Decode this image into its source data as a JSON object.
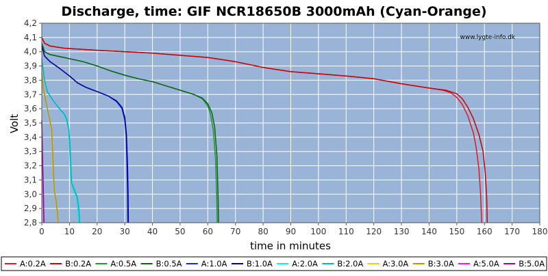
{
  "chart_data": {
    "type": "line",
    "title": "Discharge, time: GIF NCR18650B 3000mAh (Cyan-Orange)",
    "xlabel": "time in minutes",
    "ylabel": "Volt",
    "watermark": "www.lygte-info.dk",
    "xlim": [
      0,
      180
    ],
    "ylim": [
      2.8,
      4.2
    ],
    "xticks": [
      0,
      10,
      20,
      30,
      40,
      50,
      60,
      70,
      80,
      90,
      100,
      110,
      120,
      130,
      140,
      150,
      160,
      170,
      180
    ],
    "yticks": [
      "2,8",
      "2,9",
      "3,0",
      "3,1",
      "3,2",
      "3,3",
      "3,4",
      "3,5",
      "3,6",
      "3,7",
      "3,8",
      "3,9",
      "4,0",
      "4,1",
      "4,2"
    ],
    "grid": true,
    "legend_position": "bottom",
    "colors": {
      "plot_bg": "#9ab4d8",
      "grid": "#ffffff"
    },
    "series": [
      {
        "name": "A:0.2A",
        "color": "#e8141e",
        "points": [
          [
            0,
            4.1
          ],
          [
            1,
            4.06
          ],
          [
            3,
            4.04
          ],
          [
            8,
            4.025
          ],
          [
            20,
            4.01
          ],
          [
            40,
            3.99
          ],
          [
            60,
            3.96
          ],
          [
            70,
            3.93
          ],
          [
            80,
            3.89
          ],
          [
            90,
            3.86
          ],
          [
            100,
            3.845
          ],
          [
            110,
            3.83
          ],
          [
            120,
            3.81
          ],
          [
            130,
            3.775
          ],
          [
            140,
            3.745
          ],
          [
            145,
            3.73
          ],
          [
            148,
            3.71
          ],
          [
            150,
            3.68
          ],
          [
            152,
            3.63
          ],
          [
            154,
            3.55
          ],
          [
            156,
            3.43
          ],
          [
            157,
            3.33
          ],
          [
            158,
            3.18
          ],
          [
            158.6,
            3.0
          ],
          [
            159,
            2.8
          ]
        ]
      },
      {
        "name": "B:0.2A",
        "color": "#c80000",
        "points": [
          [
            0,
            4.1
          ],
          [
            1,
            4.06
          ],
          [
            3,
            4.04
          ],
          [
            8,
            4.025
          ],
          [
            20,
            4.01
          ],
          [
            40,
            3.99
          ],
          [
            60,
            3.96
          ],
          [
            70,
            3.93
          ],
          [
            80,
            3.89
          ],
          [
            90,
            3.86
          ],
          [
            100,
            3.845
          ],
          [
            110,
            3.83
          ],
          [
            120,
            3.81
          ],
          [
            130,
            3.775
          ],
          [
            140,
            3.745
          ],
          [
            146,
            3.73
          ],
          [
            150,
            3.705
          ],
          [
            152,
            3.67
          ],
          [
            154,
            3.61
          ],
          [
            156,
            3.53
          ],
          [
            158,
            3.42
          ],
          [
            159.5,
            3.3
          ],
          [
            160.3,
            3.15
          ],
          [
            160.8,
            2.98
          ],
          [
            161,
            2.8
          ]
        ]
      },
      {
        "name": "A:0.5A",
        "color": "#1e9628",
        "points": [
          [
            0,
            4.06
          ],
          [
            1,
            4.0
          ],
          [
            3,
            3.98
          ],
          [
            8,
            3.96
          ],
          [
            15,
            3.93
          ],
          [
            20,
            3.9
          ],
          [
            25,
            3.865
          ],
          [
            30,
            3.835
          ],
          [
            35,
            3.81
          ],
          [
            40,
            3.79
          ],
          [
            45,
            3.76
          ],
          [
            50,
            3.73
          ],
          [
            55,
            3.7
          ],
          [
            58,
            3.67
          ],
          [
            60,
            3.62
          ],
          [
            61,
            3.56
          ],
          [
            62,
            3.45
          ],
          [
            62.8,
            3.25
          ],
          [
            63.2,
            3.0
          ],
          [
            63.4,
            2.8
          ]
        ]
      },
      {
        "name": "B:0.5A",
        "color": "#0a6414",
        "points": [
          [
            0,
            4.06
          ],
          [
            1,
            4.0
          ],
          [
            3,
            3.98
          ],
          [
            8,
            3.96
          ],
          [
            15,
            3.93
          ],
          [
            20,
            3.9
          ],
          [
            25,
            3.865
          ],
          [
            30,
            3.835
          ],
          [
            35,
            3.81
          ],
          [
            40,
            3.79
          ],
          [
            45,
            3.76
          ],
          [
            50,
            3.73
          ],
          [
            55,
            3.7
          ],
          [
            58,
            3.675
          ],
          [
            60,
            3.635
          ],
          [
            61.5,
            3.57
          ],
          [
            62.5,
            3.47
          ],
          [
            63.3,
            3.27
          ],
          [
            63.7,
            3.0
          ],
          [
            63.9,
            2.8
          ]
        ]
      },
      {
        "name": "A:1.0A",
        "color": "#1428e6",
        "points": [
          [
            0,
            4.04
          ],
          [
            1,
            3.97
          ],
          [
            3,
            3.93
          ],
          [
            6,
            3.89
          ],
          [
            10,
            3.83
          ],
          [
            13,
            3.78
          ],
          [
            16,
            3.75
          ],
          [
            20,
            3.72
          ],
          [
            24,
            3.69
          ],
          [
            27,
            3.65
          ],
          [
            29,
            3.6
          ],
          [
            30,
            3.52
          ],
          [
            30.5,
            3.4
          ],
          [
            30.8,
            3.2
          ],
          [
            31,
            3.0
          ],
          [
            31.1,
            2.8
          ]
        ]
      },
      {
        "name": "B:1.0A",
        "color": "#000096",
        "points": [
          [
            0,
            4.04
          ],
          [
            1,
            3.97
          ],
          [
            3,
            3.93
          ],
          [
            6,
            3.89
          ],
          [
            10,
            3.83
          ],
          [
            13,
            3.78
          ],
          [
            16,
            3.75
          ],
          [
            20,
            3.72
          ],
          [
            24,
            3.69
          ],
          [
            27,
            3.655
          ],
          [
            29,
            3.61
          ],
          [
            30,
            3.54
          ],
          [
            30.6,
            3.42
          ],
          [
            31,
            3.2
          ],
          [
            31.2,
            3.0
          ],
          [
            31.3,
            2.8
          ]
        ]
      },
      {
        "name": "A:2.0A",
        "color": "#14e6f0",
        "points": [
          [
            0,
            3.95
          ],
          [
            1,
            3.8
          ],
          [
            2,
            3.72
          ],
          [
            4,
            3.66
          ],
          [
            6,
            3.61
          ],
          [
            8,
            3.56
          ],
          [
            9,
            3.52
          ],
          [
            9.6,
            3.45
          ],
          [
            10,
            3.35
          ],
          [
            10.3,
            3.2
          ],
          [
            10.6,
            3.08
          ],
          [
            11.5,
            3.03
          ],
          [
            12.5,
            2.98
          ],
          [
            13,
            2.9
          ],
          [
            13.3,
            2.8
          ]
        ]
      },
      {
        "name": "B:2.0A",
        "color": "#00b4b4",
        "points": [
          [
            0,
            3.95
          ],
          [
            1,
            3.8
          ],
          [
            2,
            3.72
          ],
          [
            4,
            3.66
          ],
          [
            6,
            3.61
          ],
          [
            8,
            3.565
          ],
          [
            9,
            3.53
          ],
          [
            9.8,
            3.45
          ],
          [
            10.2,
            3.35
          ],
          [
            10.5,
            3.2
          ],
          [
            10.8,
            3.08
          ],
          [
            11.8,
            3.03
          ],
          [
            12.8,
            2.98
          ],
          [
            13.4,
            2.9
          ],
          [
            13.7,
            2.8
          ]
        ]
      },
      {
        "name": "A:3.0A",
        "color": "#f5c814",
        "points": [
          [
            0,
            3.85
          ],
          [
            0.5,
            3.75
          ],
          [
            1,
            3.7
          ],
          [
            2,
            3.6
          ],
          [
            3,
            3.5
          ],
          [
            3.5,
            3.45
          ],
          [
            3.8,
            3.3
          ],
          [
            4.1,
            3.15
          ],
          [
            4.4,
            3.03
          ],
          [
            5,
            2.96
          ],
          [
            5.5,
            2.88
          ],
          [
            5.8,
            2.8
          ]
        ]
      },
      {
        "name": "B:3.0A",
        "color": "#b49600",
        "points": [
          [
            0,
            3.85
          ],
          [
            0.5,
            3.75
          ],
          [
            1,
            3.7
          ],
          [
            2,
            3.6
          ],
          [
            3,
            3.51
          ],
          [
            3.6,
            3.45
          ],
          [
            3.9,
            3.3
          ],
          [
            4.2,
            3.15
          ],
          [
            4.5,
            3.03
          ],
          [
            5.1,
            2.96
          ],
          [
            5.6,
            2.88
          ],
          [
            5.9,
            2.8
          ]
        ]
      },
      {
        "name": "A:5.0A",
        "color": "#f014f0",
        "points": [
          [
            0,
            3.5
          ],
          [
            0.3,
            3.2
          ],
          [
            0.5,
            3.0
          ],
          [
            0.7,
            2.8
          ]
        ]
      },
      {
        "name": "B:5.0A",
        "color": "#a000a0",
        "points": [
          [
            0,
            3.52
          ],
          [
            0.35,
            3.2
          ],
          [
            0.6,
            3.0
          ],
          [
            0.8,
            2.8
          ]
        ]
      }
    ]
  }
}
